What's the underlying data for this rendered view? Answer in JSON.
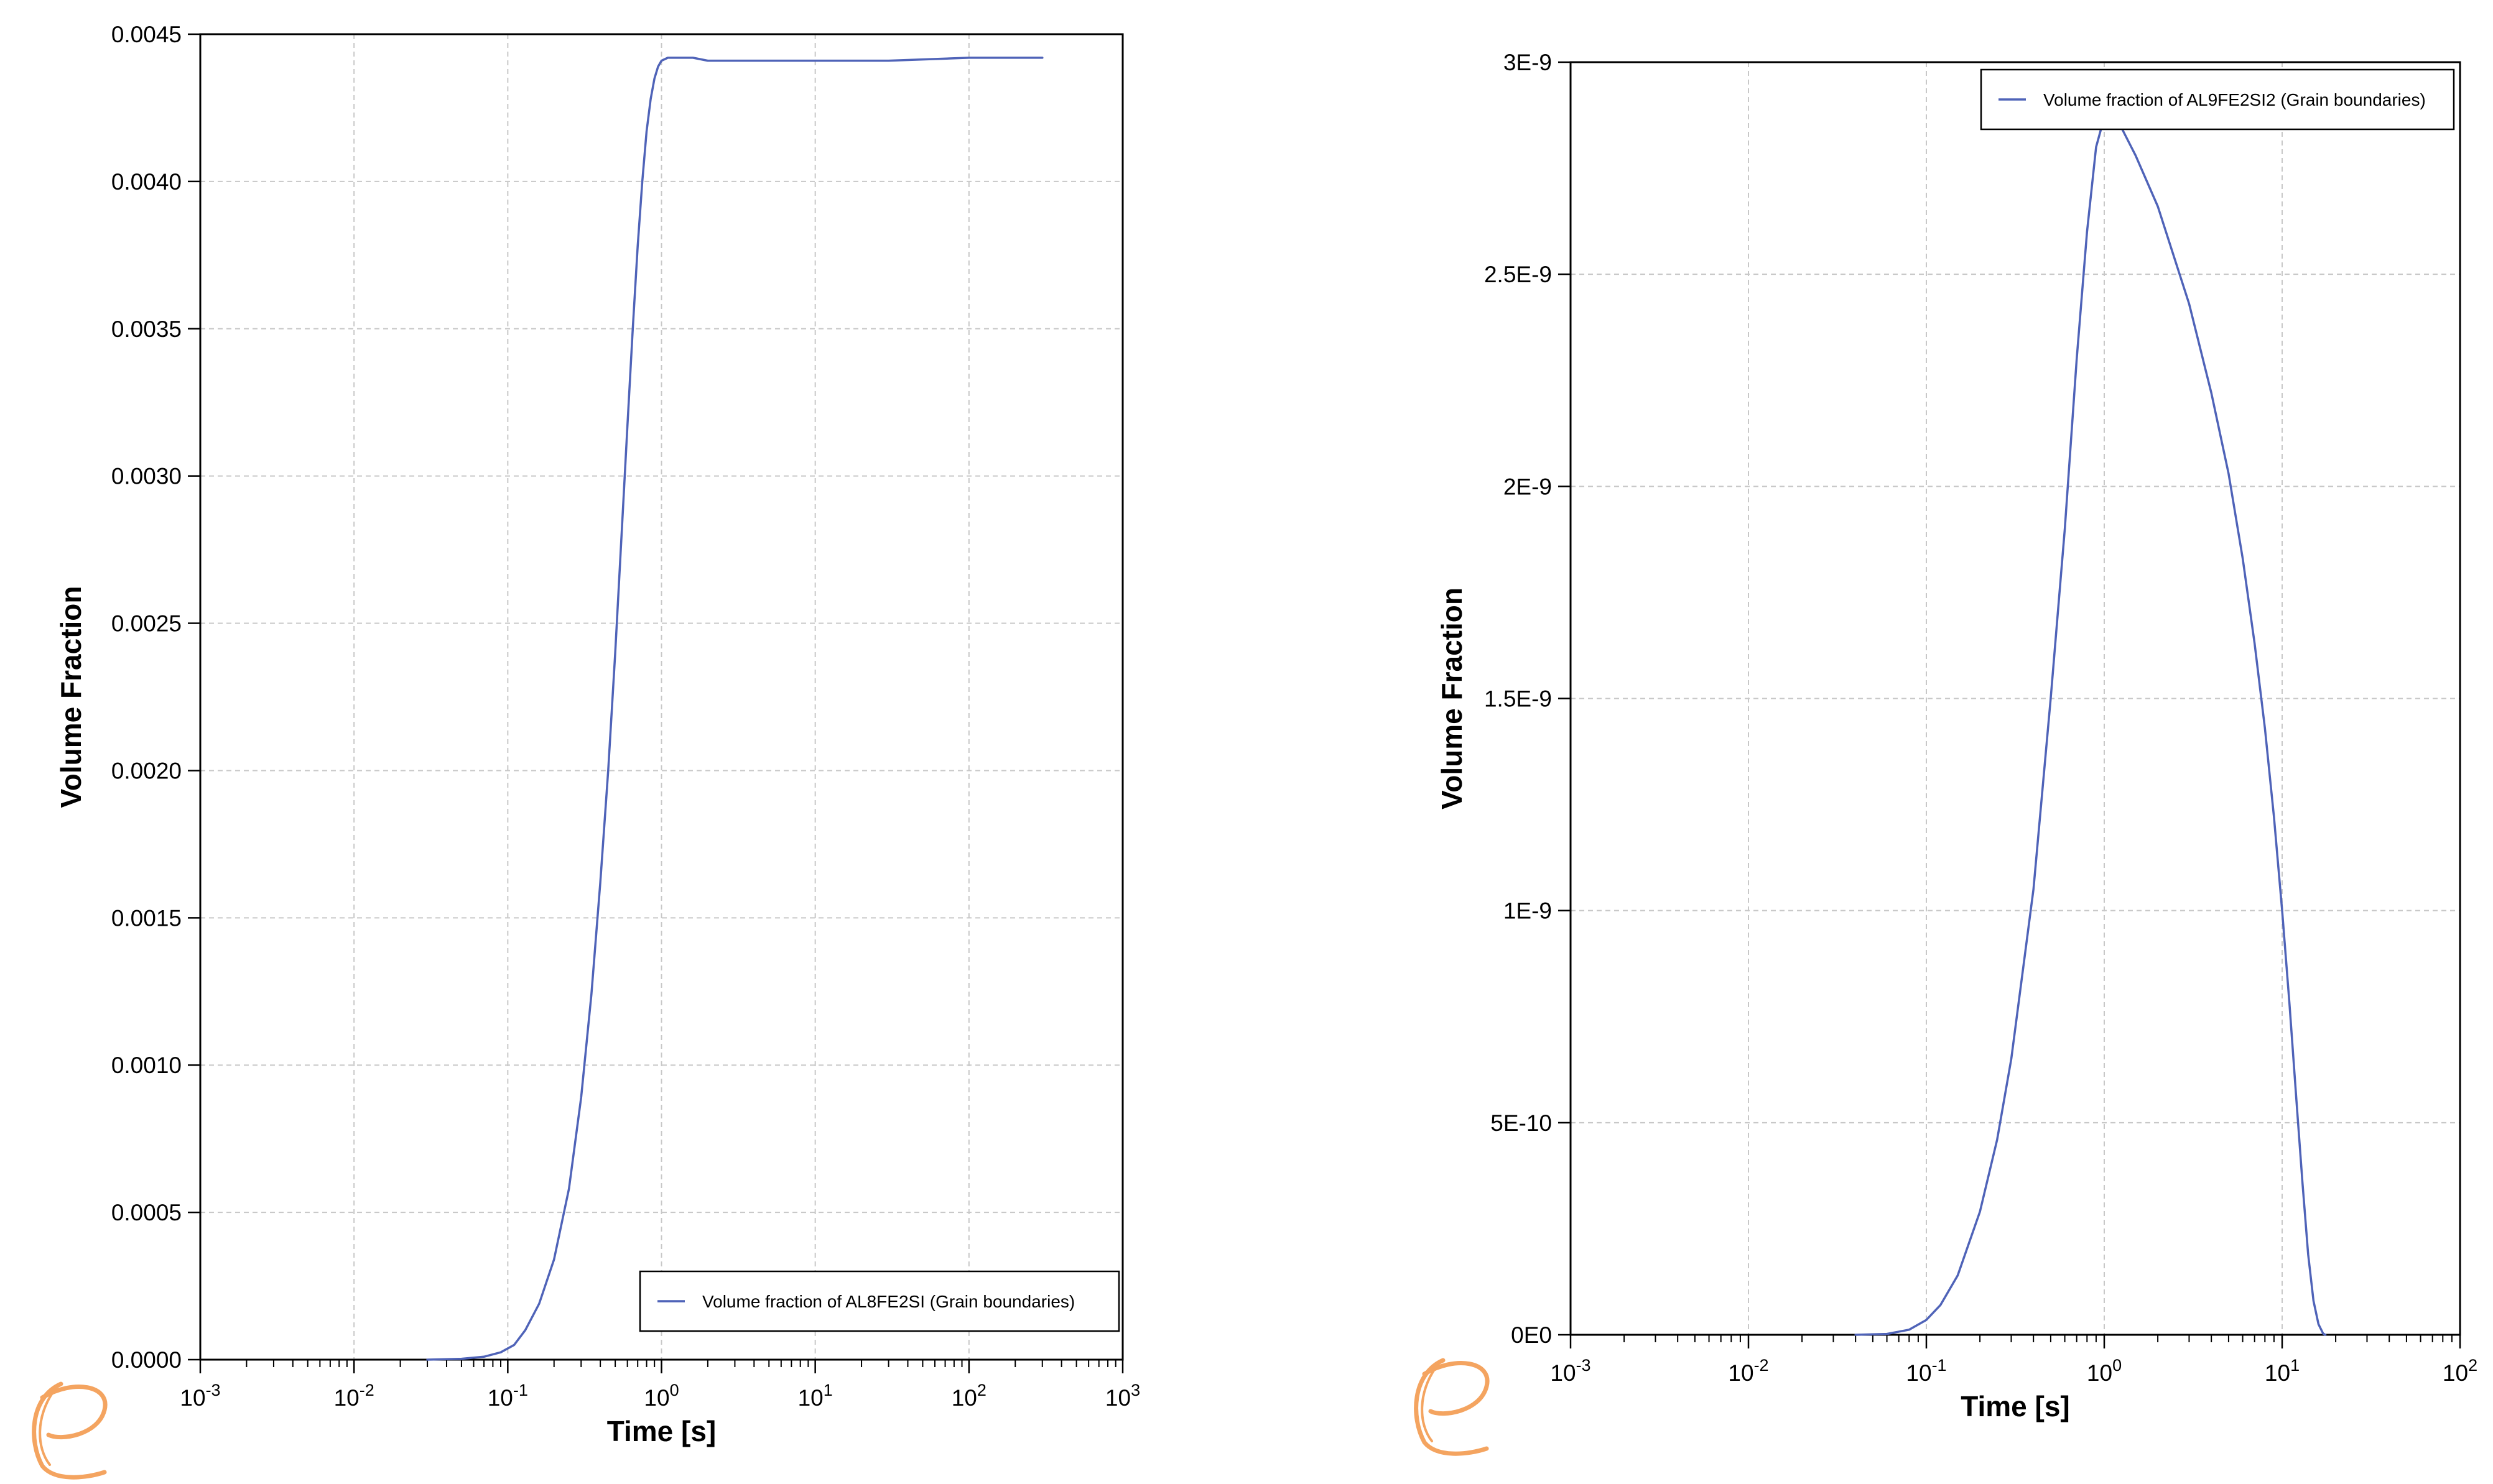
{
  "chart_data": [
    {
      "type": "line",
      "title": "",
      "xlabel": "Time [s]",
      "ylabel": "Volume Fraction",
      "xscale": "log",
      "xlim": [
        0.001,
        1000
      ],
      "ylim": [
        0,
        0.0045
      ],
      "grid": true,
      "legend_position": "bottom-right",
      "x_ticks": [
        {
          "value": 0.001,
          "base": "10",
          "exp": "-3"
        },
        {
          "value": 0.01,
          "base": "10",
          "exp": "-2"
        },
        {
          "value": 0.1,
          "base": "10",
          "exp": "-1"
        },
        {
          "value": 1,
          "base": "10",
          "exp": "0"
        },
        {
          "value": 10,
          "base": "10",
          "exp": "1"
        },
        {
          "value": 100,
          "base": "10",
          "exp": "2"
        },
        {
          "value": 1000,
          "base": "10",
          "exp": "3"
        }
      ],
      "y_ticks": [
        {
          "value": 0,
          "label": "0.0000"
        },
        {
          "value": 0.0005,
          "label": "0.0005"
        },
        {
          "value": 0.001,
          "label": "0.0010"
        },
        {
          "value": 0.0015,
          "label": "0.0015"
        },
        {
          "value": 0.002,
          "label": "0.0020"
        },
        {
          "value": 0.0025,
          "label": "0.0025"
        },
        {
          "value": 0.003,
          "label": "0.0030"
        },
        {
          "value": 0.0035,
          "label": "0.0035"
        },
        {
          "value": 0.004,
          "label": "0.0040"
        },
        {
          "value": 0.0045,
          "label": "0.0045"
        }
      ],
      "series": [
        {
          "name": "Volume fraction of AL8FE2SI (Grain boundaries)",
          "color": "#4f63b8",
          "x": [
            0.03,
            0.05,
            0.07,
            0.09,
            0.11,
            0.13,
            0.16,
            0.2,
            0.25,
            0.3,
            0.35,
            0.4,
            0.45,
            0.5,
            0.55,
            0.6,
            0.65,
            0.7,
            0.75,
            0.8,
            0.85,
            0.9,
            0.95,
            1.0,
            1.1,
            1.3,
            1.6,
            2,
            5,
            10,
            30,
            100,
            300
          ],
          "y": [
            0,
            3e-06,
            1e-05,
            2.5e-05,
            5e-05,
            0.0001,
            0.00019,
            0.00034,
            0.00058,
            0.00089,
            0.00124,
            0.00162,
            0.002,
            0.0024,
            0.0028,
            0.00317,
            0.0035,
            0.00378,
            0.004,
            0.00417,
            0.00428,
            0.00435,
            0.00439,
            0.00441,
            0.00442,
            0.00442,
            0.00442,
            0.00441,
            0.00441,
            0.00441,
            0.00441,
            0.00442,
            0.00442
          ]
        }
      ]
    },
    {
      "type": "line",
      "title": "",
      "xlabel": "Time [s]",
      "ylabel": "Volume Fraction",
      "xscale": "log",
      "xlim": [
        0.001,
        100
      ],
      "ylim": [
        0,
        3e-09
      ],
      "grid": true,
      "legend_position": "top-right",
      "x_ticks": [
        {
          "value": 0.001,
          "base": "10",
          "exp": "-3"
        },
        {
          "value": 0.01,
          "base": "10",
          "exp": "-2"
        },
        {
          "value": 0.1,
          "base": "10",
          "exp": "-1"
        },
        {
          "value": 1,
          "base": "10",
          "exp": "0"
        },
        {
          "value": 10,
          "base": "10",
          "exp": "1"
        },
        {
          "value": 100,
          "base": "10",
          "exp": "2"
        }
      ],
      "y_ticks": [
        {
          "value": 0,
          "label": "0E0"
        },
        {
          "value": 5e-10,
          "label": "5E-10"
        },
        {
          "value": 1e-09,
          "label": "1E-9"
        },
        {
          "value": 1.5e-09,
          "label": "1.5E-9"
        },
        {
          "value": 2e-09,
          "label": "2E-9"
        },
        {
          "value": 2.5e-09,
          "label": "2.5E-9"
        },
        {
          "value": 3e-09,
          "label": "3E-9"
        }
      ],
      "series": [
        {
          "name": "Volume fraction of AL9FE2SI2 (Grain boundaries)",
          "color": "#4f63b8",
          "x": [
            0.04,
            0.06,
            0.08,
            0.1,
            0.12,
            0.15,
            0.2,
            0.25,
            0.3,
            0.4,
            0.5,
            0.6,
            0.7,
            0.8,
            0.9,
            1.0,
            1.2,
            1.5,
            2,
            3,
            4,
            5,
            6,
            7,
            8,
            9,
            10,
            11,
            12,
            13,
            14,
            15,
            16,
            17,
            17.5
          ],
          "y": [
            0,
            2e-12,
            1.2e-11,
            3.5e-11,
            7e-11,
            1.4e-10,
            2.9e-10,
            4.6e-10,
            6.5e-10,
            1.05e-09,
            1.5e-09,
            1.9e-09,
            2.3e-09,
            2.6e-09,
            2.8e-09,
            2.87e-09,
            2.86e-09,
            2.78e-09,
            2.66e-09,
            2.43e-09,
            2.22e-09,
            2.03e-09,
            1.83e-09,
            1.63e-09,
            1.43e-09,
            1.22e-09,
            1e-09,
            7.8e-10,
            5.6e-10,
            3.6e-10,
            1.9e-10,
            8e-11,
            2.5e-11,
            3e-12,
            0
          ]
        }
      ]
    }
  ]
}
